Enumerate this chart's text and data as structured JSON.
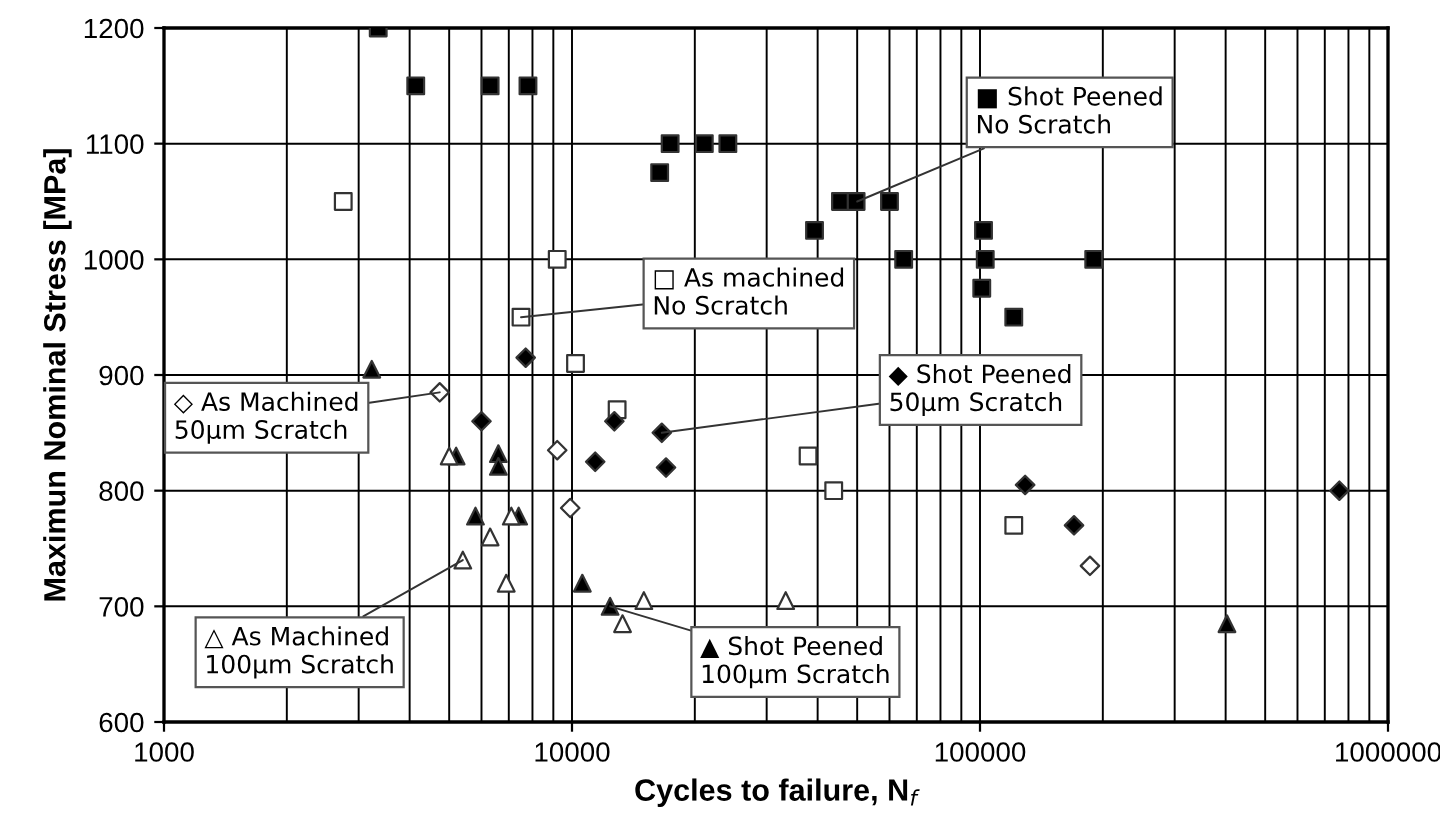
{
  "chart_data": {
    "type": "scatter",
    "xlabel": "Cycles to failure, N$_{f}$",
    "ylabel": "Maximun Nominal Stress [MPa]",
    "log": "x",
    "xlim": [
      1000,
      1000000
    ],
    "xticks": [
      1000,
      10000,
      100000,
      1000000
    ],
    "ylim": [
      600,
      1200
    ],
    "yticks": [
      600,
      700,
      800,
      900,
      1000,
      1100,
      1200
    ],
    "grid": true,
    "series": [
      {
        "color": "#000000",
        "marker": "square",
        "x": [
          3350,
          4140,
          6300,
          7800,
          17400,
          21100,
          24100,
          16400,
          45500,
          49700,
          60000,
          39300,
          65000,
          102000,
          103000,
          101000,
          121000,
          190000
        ],
        "values": [
          1200,
          1150,
          1150,
          1150,
          1100,
          1100,
          1100,
          1075,
          1050,
          1050,
          1050,
          1025,
          1000,
          1025,
          1000,
          975,
          950,
          1000
        ]
      },
      {
        "color": "#ffffff",
        "marker": "square",
        "x": [
          2750,
          9200,
          7500,
          10200,
          12900,
          37900,
          43800,
          121000
        ],
        "values": [
          1050,
          1000,
          950,
          910,
          870,
          830,
          800,
          770
        ]
      },
      {
        "color": "#000000",
        "marker": "diamond",
        "x": [
          7700,
          6000,
          12700,
          16600,
          11400,
          17000,
          129000,
          170000,
          760000
        ],
        "values": [
          915,
          860,
          860,
          850,
          825,
          820,
          805,
          770,
          800
        ]
      },
      {
        "color": "#ffffff",
        "marker": "diamond",
        "x": [
          4740,
          9200,
          9900,
          186000
        ],
        "values": [
          885,
          835,
          785,
          735
        ]
      },
      {
        "color": "#000000",
        "marker": "triangle",
        "x": [
          3230,
          5200,
          6600,
          6600,
          5800,
          7400,
          10600,
          12400,
          403000
        ],
        "values": [
          905,
          830,
          832,
          821,
          778,
          778,
          720,
          700,
          685
        ]
      },
      {
        "color": "#ffffff",
        "marker": "triangle",
        "x": [
          5000,
          7100,
          6300,
          5400,
          6900,
          15000,
          13300,
          33400
        ],
        "values": [
          830,
          778,
          760,
          740,
          720,
          705,
          685,
          705
        ]
      }
    ],
    "annotations": [
      {
        "text": "■ Shot Peened\nNo Scratch",
        "x": 50000,
        "y": 1050
      },
      {
        "text": "□ As machined\nNo Scratch",
        "x": 7500,
        "y": 950
      },
      {
        "text": "◆ Shot Peened\n50µm Scratch",
        "x": 16600,
        "y": 850
      },
      {
        "text": "◇ As Machined\n50µm Scratch",
        "x": 4740,
        "y": 885
      },
      {
        "text": "△ As Machined\n100µm Scratch",
        "x": 5400,
        "y": 740
      },
      {
        "text": "▲ Shot Peened\n100µm Scratch",
        "x": 12400,
        "y": 700
      }
    ]
  }
}
